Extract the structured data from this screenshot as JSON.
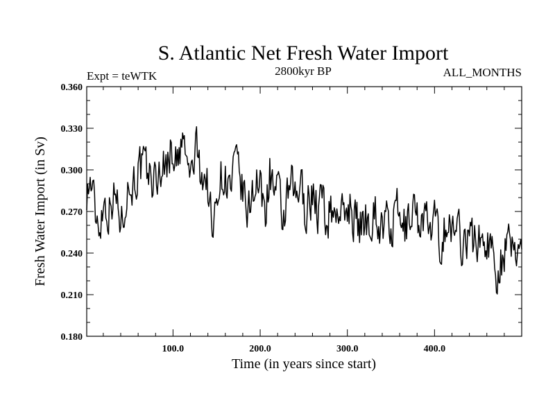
{
  "chart_data": {
    "type": "line",
    "title": "S. Atlantic Net Fresh Water Import",
    "subtitle_left": "Expt = teWTK",
    "subtitle_center": "2800kyr BP",
    "subtitle_right": "ALL_MONTHS",
    "xlabel": "Time (in years since start)",
    "ylabel": "Fresh Water Import (in Sv)",
    "xlim": [
      1,
      500
    ],
    "ylim": [
      0.18,
      0.36
    ],
    "xticks": [
      100,
      200,
      300,
      400
    ],
    "xtick_labels": [
      "100.0",
      "200.0",
      "300.0",
      "400.0"
    ],
    "yticks": [
      0.18,
      0.21,
      0.24,
      0.27,
      0.3,
      0.33,
      0.36
    ],
    "ytick_labels": [
      "0.180",
      "0.210",
      "0.240",
      "0.270",
      "0.300",
      "0.330",
      "0.360"
    ],
    "line_color": "#000000",
    "series": [
      {
        "name": "teWTK fresh water import",
        "x_start": 1,
        "x_step": 5,
        "values": [
          0.286,
          0.291,
          0.268,
          0.262,
          0.278,
          0.271,
          0.283,
          0.276,
          0.262,
          0.285,
          0.288,
          0.293,
          0.3,
          0.301,
          0.297,
          0.294,
          0.291,
          0.303,
          0.302,
          0.312,
          0.314,
          0.301,
          0.322,
          0.303,
          0.295,
          0.316,
          0.302,
          0.296,
          0.285,
          0.248,
          0.29,
          0.296,
          0.294,
          0.284,
          0.302,
          0.295,
          0.281,
          0.265,
          0.287,
          0.293,
          0.282,
          0.271,
          0.3,
          0.285,
          0.28,
          0.262,
          0.276,
          0.287,
          0.275,
          0.292,
          0.272,
          0.278,
          0.285,
          0.27,
          0.28,
          0.263,
          0.272,
          0.268,
          0.275,
          0.262,
          0.278,
          0.269,
          0.262,
          0.259,
          0.265,
          0.262,
          0.275,
          0.26,
          0.258,
          0.263,
          0.255,
          0.272,
          0.26,
          0.258,
          0.262,
          0.281,
          0.26,
          0.272,
          0.261,
          0.253,
          0.263,
          0.244,
          0.258,
          0.261,
          0.252,
          0.265,
          0.248,
          0.253,
          0.25,
          0.25,
          0.248,
          0.25,
          0.248,
          0.242,
          0.228,
          0.236,
          0.24,
          0.244,
          0.24,
          0.248
        ]
      }
    ]
  }
}
